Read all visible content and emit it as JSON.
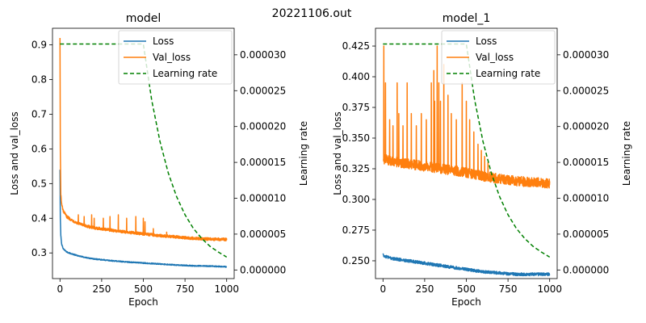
{
  "figure": {
    "suptitle": "20221106.out"
  },
  "colors": {
    "loss": "#1f77b4",
    "val_loss": "#ff7f0e",
    "lr": "#008000",
    "axis": "#000000",
    "legend_border": "#cccccc"
  },
  "chart_data": [
    {
      "type": "line",
      "title": "model",
      "xlabel": "Epoch",
      "ylabel": "Loss and val_loss",
      "y2label": "Learning rate",
      "xlim": [
        -45,
        1045
      ],
      "ylim": [
        0.226,
        0.948
      ],
      "y2lim": [
        -1.2e-06,
        3.37e-05
      ],
      "xticks": [
        0,
        250,
        500,
        750,
        1000
      ],
      "xtick_labels": [
        "0",
        "250",
        "500",
        "750",
        "1000"
      ],
      "yticks": [
        0.3,
        0.4,
        0.5,
        0.6,
        0.7,
        0.8,
        0.9
      ],
      "ytick_labels": [
        "0.3",
        "0.4",
        "0.5",
        "0.6",
        "0.7",
        "0.8",
        "0.9"
      ],
      "y2ticks": [
        0.0,
        5e-06,
        1e-05,
        1.5e-05,
        2e-05,
        2.5e-05,
        3e-05
      ],
      "y2tick_labels": [
        "0.000000",
        "0.000005",
        "0.000010",
        "0.000015",
        "0.000020",
        "0.000025",
        "0.000030"
      ],
      "legend": {
        "location": "upper-right",
        "entries": [
          "Loss",
          "Val_loss",
          "Learning rate"
        ]
      },
      "grid": false,
      "series": [
        {
          "name": "Loss",
          "axis": "left",
          "x": [
            0,
            2,
            5,
            10,
            20,
            40,
            70,
            100,
            150,
            200,
            300,
            400,
            500,
            600,
            700,
            800,
            900,
            1000
          ],
          "y": [
            0.54,
            0.4,
            0.35,
            0.325,
            0.312,
            0.303,
            0.297,
            0.293,
            0.287,
            0.283,
            0.278,
            0.274,
            0.271,
            0.268,
            0.265,
            0.263,
            0.262,
            0.26
          ],
          "noise": 0.0015
        },
        {
          "name": "Val_loss",
          "axis": "left",
          "x": [
            0,
            2,
            5,
            10,
            20,
            40,
            70,
            100,
            150,
            200,
            300,
            400,
            500,
            600,
            700,
            800,
            900,
            1000
          ],
          "y": [
            0.92,
            0.6,
            0.47,
            0.44,
            0.42,
            0.405,
            0.395,
            0.387,
            0.378,
            0.373,
            0.366,
            0.36,
            0.355,
            0.35,
            0.346,
            0.342,
            0.34,
            0.339
          ],
          "noise": 0.004,
          "spikes": [
            [
              110,
              0.41
            ],
            [
              145,
              0.405
            ],
            [
              190,
              0.41
            ],
            [
              205,
              0.4
            ],
            [
              260,
              0.4
            ],
            [
              300,
              0.405
            ],
            [
              350,
              0.41
            ],
            [
              400,
              0.4
            ],
            [
              455,
              0.405
            ],
            [
              500,
              0.4
            ],
            [
              510,
              0.39
            ],
            [
              560,
              0.37
            ],
            [
              640,
              0.36
            ]
          ]
        },
        {
          "name": "Learning rate",
          "axis": "right",
          "x": [
            0,
            500,
            550,
            600,
            650,
            700,
            750,
            800,
            850,
            900,
            950,
            1000
          ],
          "y": [
            3.15e-05,
            3.15e-05,
            2.37e-05,
            1.79e-05,
            1.35e-05,
            1.02e-05,
            7.7e-06,
            5.8e-06,
            4.4e-06,
            3.3e-06,
            2.5e-06,
            1.8e-06
          ]
        }
      ]
    },
    {
      "type": "line",
      "title": "model_1",
      "xlabel": "Epoch",
      "ylabel": "Loss and val_loss",
      "y2label": "Learning rate",
      "xlim": [
        -45,
        1045
      ],
      "ylim": [
        0.2355,
        0.4395
      ],
      "y2lim": [
        -1.2e-06,
        3.37e-05
      ],
      "xticks": [
        0,
        250,
        500,
        750,
        1000
      ],
      "xtick_labels": [
        "0",
        "250",
        "500",
        "750",
        "1000"
      ],
      "yticks": [
        0.25,
        0.275,
        0.3,
        0.325,
        0.35,
        0.375,
        0.4,
        0.425
      ],
      "ytick_labels": [
        "0.250",
        "0.275",
        "0.300",
        "0.325",
        "0.350",
        "0.375",
        "0.400",
        "0.425"
      ],
      "y2ticks": [
        0.0,
        5e-06,
        1e-05,
        1.5e-05,
        2e-05,
        2.5e-05,
        3e-05
      ],
      "y2tick_labels": [
        "0.000000",
        "0.000005",
        "0.000010",
        "0.000015",
        "0.000020",
        "0.000025",
        "0.000030"
      ],
      "legend": {
        "location": "upper-right",
        "entries": [
          "Loss",
          "Val_loss",
          "Learning rate"
        ]
      },
      "grid": false,
      "series": [
        {
          "name": "Loss",
          "axis": "left",
          "x": [
            0,
            5,
            50,
            100,
            200,
            300,
            400,
            500,
            600,
            700,
            800,
            900,
            1000
          ],
          "y": [
            0.256,
            0.254,
            0.252,
            0.251,
            0.249,
            0.247,
            0.245,
            0.243,
            0.241,
            0.24,
            0.239,
            0.239,
            0.239
          ],
          "noise": 0.0012
        },
        {
          "name": "Val_loss",
          "axis": "left",
          "x": [
            0,
            100,
            200,
            300,
            400,
            500,
            600,
            700,
            800,
            900,
            1000
          ],
          "y": [
            0.333,
            0.33,
            0.328,
            0.326,
            0.324,
            0.322,
            0.319,
            0.317,
            0.315,
            0.314,
            0.313
          ],
          "noise": 0.004,
          "spikes": [
            [
              5,
              0.425
            ],
            [
              15,
              0.395
            ],
            [
              40,
              0.365
            ],
            [
              60,
              0.36
            ],
            [
              85,
              0.395
            ],
            [
              95,
              0.37
            ],
            [
              120,
              0.36
            ],
            [
              145,
              0.395
            ],
            [
              170,
              0.37
            ],
            [
              200,
              0.36
            ],
            [
              230,
              0.37
            ],
            [
              260,
              0.365
            ],
            [
              290,
              0.395
            ],
            [
              305,
              0.405
            ],
            [
              310,
              0.38
            ],
            [
              325,
              0.425
            ],
            [
              335,
              0.395
            ],
            [
              345,
              0.38
            ],
            [
              365,
              0.41
            ],
            [
              390,
              0.385
            ],
            [
              410,
              0.37
            ],
            [
              440,
              0.365
            ],
            [
              475,
              0.395
            ],
            [
              500,
              0.38
            ],
            [
              520,
              0.365
            ],
            [
              545,
              0.355
            ],
            [
              570,
              0.345
            ],
            [
              590,
              0.34
            ],
            [
              610,
              0.335
            ],
            [
              630,
              0.33
            ]
          ]
        },
        {
          "name": "Learning rate",
          "axis": "right",
          "x": [
            0,
            500,
            550,
            600,
            650,
            700,
            750,
            800,
            850,
            900,
            950,
            1000
          ],
          "y": [
            3.15e-05,
            3.15e-05,
            2.37e-05,
            1.79e-05,
            1.35e-05,
            1.02e-05,
            7.7e-06,
            5.8e-06,
            4.4e-06,
            3.3e-06,
            2.5e-06,
            1.8e-06
          ]
        }
      ]
    }
  ]
}
